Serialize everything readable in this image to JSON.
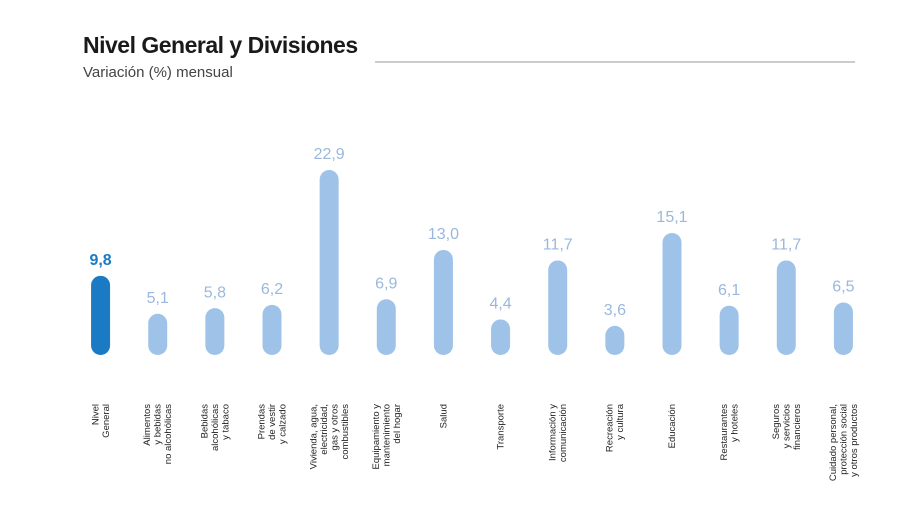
{
  "chart_data": {
    "type": "bar",
    "title": "Nivel General y Divisiones",
    "subtitle": "Variación (%) mensual",
    "categories": [
      "Nivel\nGeneral",
      "Alimentos\ny bebidas\nno alcohólicas",
      "Bebidas\nalcohólicas\ny tabaco",
      "Prendas\nde vestir\ny calzado",
      "Vivienda, agua,\nelectricidad,\ngas y otros\ncombustibles",
      "Equipamiento y\nmantenimiento\ndel hogar",
      "Salud",
      "Transporte",
      "Información y\ncomunicación",
      "Recreación\ny cultura",
      "Educación",
      "Restaurantes\ny hoteles",
      "Seguros\ny servicios\nfinancieros",
      "Cuidado personal,\nprotección social\ny otros productos"
    ],
    "values": [
      9.8,
      5.1,
      5.8,
      6.2,
      22.9,
      6.9,
      13.0,
      4.4,
      11.7,
      3.6,
      15.1,
      6.1,
      11.7,
      6.5
    ],
    "value_labels": [
      "9,8",
      "5,1",
      "5,8",
      "6,2",
      "22,9",
      "6,9",
      "13,0",
      "4,4",
      "11,7",
      "3,6",
      "15,1",
      "6,1",
      "11,7",
      "6,5"
    ],
    "colors": [
      "#1a7ac4",
      "#9fc3e8",
      "#9fc3e8",
      "#9fc3e8",
      "#9fc3e8",
      "#9fc3e8",
      "#9fc3e8",
      "#9fc3e8",
      "#9fc3e8",
      "#9fc3e8",
      "#9fc3e8",
      "#9fc3e8",
      "#9fc3e8",
      "#9fc3e8"
    ],
    "label_colors": [
      "#1a7ac4",
      "#9ab8dd",
      "#9ab8dd",
      "#9ab8dd",
      "#9ab8dd",
      "#9ab8dd",
      "#9ab8dd",
      "#9ab8dd",
      "#9ab8dd",
      "#9ab8dd",
      "#9ab8dd",
      "#9ab8dd",
      "#9ab8dd",
      "#9ab8dd"
    ],
    "ylim": [
      0,
      25
    ]
  }
}
